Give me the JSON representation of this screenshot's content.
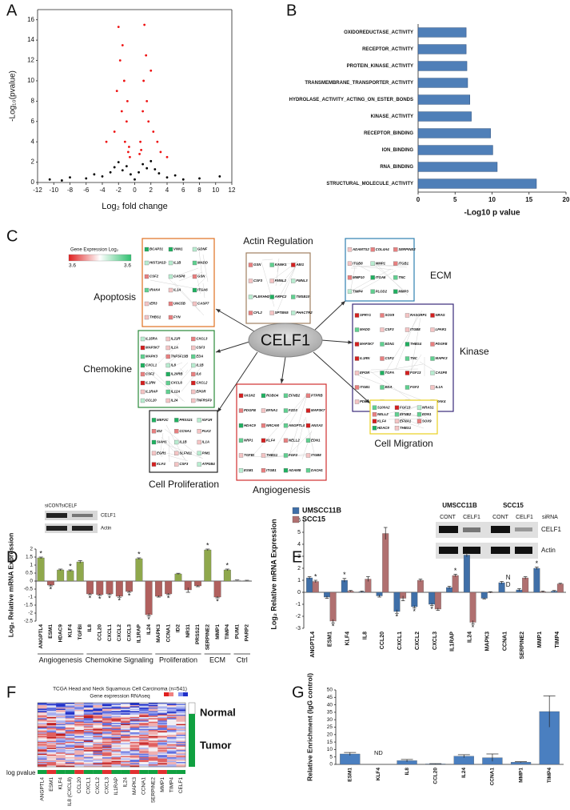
{
  "chart_data": [
    {
      "type": "scatter",
      "panel": "A",
      "x_label": "Log₂ fold change",
      "y_label": "-Log₁₀(pvalue)",
      "xlim": [
        -12,
        12
      ],
      "xticks": [
        -12,
        -10,
        -8,
        -6,
        -4,
        -2,
        0,
        2,
        4,
        6,
        8,
        10,
        12
      ],
      "ylim": [
        0,
        17
      ],
      "yticks": [
        0,
        2,
        4,
        6,
        8,
        10,
        12,
        14,
        16
      ],
      "series": [
        {
          "color": "#000000",
          "x": [
            -10.5,
            -9,
            -8,
            -6,
            -5,
            -4,
            -3,
            -2.5,
            -2,
            -1.5,
            -1,
            -0.5,
            0,
            0.5,
            1,
            1.5,
            2,
            2.5,
            3,
            4,
            5,
            6,
            8,
            10.5
          ],
          "y": [
            0.3,
            0.2,
            0.5,
            0.4,
            0.8,
            0.6,
            1.0,
            1.5,
            2.0,
            1.2,
            1.6,
            0.8,
            0.3,
            1.0,
            1.8,
            1.4,
            2.1,
            1.3,
            0.9,
            0.5,
            0.7,
            0.3,
            0.4,
            0.6
          ]
        },
        {
          "color": "#ee1111",
          "x": [
            -3.5,
            -2.5,
            -2.2,
            -2,
            -1.8,
            -1.6,
            -1.5,
            -1.3,
            -1.2,
            -1,
            -0.9,
            -0.8,
            -0.7,
            -0.6,
            0.6,
            0.7,
            0.8,
            1,
            1.1,
            1.2,
            1.4,
            1.5,
            1.7,
            2,
            2.3,
            2.8,
            3.2,
            4
          ],
          "y": [
            4,
            5,
            9,
            15.3,
            12,
            7,
            13.5,
            10,
            4,
            6,
            8,
            3,
            3.5,
            2.5,
            2.8,
            4,
            3.2,
            7,
            10,
            15.5,
            12.5,
            8,
            6,
            11,
            5,
            4,
            3,
            2.5
          ]
        }
      ]
    },
    {
      "type": "barh",
      "panel": "B",
      "x_label": "-Log10 p value",
      "color": "#4f7fb8",
      "xlim": [
        0,
        20
      ],
      "xticks": [
        0,
        5,
        10,
        15,
        20
      ],
      "categories": [
        "OXIDOREDUCTASE_ACTIVITY",
        "RECEPTOR_ACTIVITY",
        "PROTEIN_KINASE_ACTIVITY",
        "TRANSMEMBRANE_TRANSPORTER_ACTIVITY",
        "HYDROLASE_ACTIVITY_ACTING_ON_ESTER_BONDS",
        "KINASE_ACTIVITY",
        "RECEPTOR_BINDING",
        "ION_BINDING",
        "RNA_BINDING",
        "STRUCTURAL_MOLECULE_ACTIVITY"
      ],
      "values": [
        6.5,
        6.5,
        6.6,
        6.7,
        7.0,
        7.2,
        9.8,
        10.1,
        10.7,
        16.0
      ]
    },
    {
      "type": "bar",
      "panel": "D",
      "y_label": "Log₂ Relative mRNA Expression",
      "ylim": [
        -2.5,
        2
      ],
      "yticks": [
        -2.5,
        -2,
        -1.5,
        -1,
        -0.5,
        0,
        0.5,
        1,
        1.5,
        2
      ],
      "inset": {
        "lanes": "siCONTsiCELF",
        "bands": [
          "CELF1",
          "Actin"
        ]
      },
      "groups": [
        {
          "name": "Angiogenesis",
          "categories": [
            "ANGPTL4",
            "ESM1",
            "HDAC9",
            "KLF4",
            "TGFBI"
          ],
          "values": [
            1.45,
            -0.25,
            0.7,
            0.65,
            1.2
          ],
          "errors": [
            0.05,
            0.05,
            0.05,
            0.05,
            0.08
          ],
          "colors": [
            "#8fa84c",
            "#b0605e",
            "#8fa84c",
            "#8fa84c",
            "#8fa84c"
          ],
          "significance": [
            "*",
            "*",
            null,
            "*",
            null
          ]
        },
        {
          "name": "Chemokine Signaling",
          "categories": [
            "IL8",
            "CCL20",
            "CXCL1",
            "CXCL2",
            "CXCL3",
            "IL1RAP",
            "IL24"
          ],
          "values": [
            -0.8,
            -0.85,
            -0.8,
            -0.95,
            -0.65,
            1.4,
            -2.1
          ],
          "errors": [
            0.05,
            0.05,
            0.05,
            0.06,
            0.05,
            0.05,
            0.08
          ],
          "colors": [
            "#b0605e",
            "#b0605e",
            "#b0605e",
            "#b0605e",
            "#b0605e",
            "#8fa84c",
            "#b0605e"
          ],
          "significance": [
            "*",
            "*",
            "*",
            "*",
            "*",
            "*",
            "*"
          ]
        },
        {
          "name": "Proliferation",
          "categories": [
            "MAPK3",
            "CCNA1",
            "ID2",
            "NR31",
            "PRSS21"
          ],
          "values": [
            -0.95,
            -0.8,
            0.45,
            -0.55,
            -0.3
          ],
          "errors": [
            0.05,
            0.05,
            0.04,
            0.15,
            0.05
          ],
          "colors": [
            "#b0605e",
            "#b0605e",
            "#8fa84c",
            "#b0605e",
            "#b0605e"
          ],
          "significance": [
            null,
            "*",
            null,
            null,
            null
          ]
        },
        {
          "name": "ECM",
          "categories": [
            "SERPINE2",
            "MMP1",
            "TIMP4"
          ],
          "values": [
            1.95,
            -1.0,
            0.7
          ],
          "errors": [
            0.05,
            0.05,
            0.05
          ],
          "colors": [
            "#8fa84c",
            "#b0605e",
            "#8fa84c"
          ],
          "significance": [
            "*",
            "*",
            "*"
          ]
        },
        {
          "name": "Ctrl",
          "categories": [
            "PUM1",
            "PARP2"
          ],
          "values": [
            0.05,
            0.03
          ],
          "errors": [
            0.02,
            0.02
          ],
          "colors": [
            "#c8c8c8",
            "#c8c8c8"
          ],
          "significance": [
            null,
            null
          ]
        }
      ]
    },
    {
      "type": "bar",
      "panel": "E",
      "y_label": "Log₂ Relative mRNA Expression",
      "ylim": [
        -3,
        6
      ],
      "yticks": [
        -3,
        -2,
        -1,
        0,
        1,
        2,
        3,
        4,
        5,
        6
      ],
      "inset": {
        "cell_lines": [
          "UMSCC11B",
          "SCC15"
        ],
        "lane_title": "siRNA",
        "lanes": [
          "CONT",
          "CELF1",
          "CONT",
          "CELF1"
        ],
        "bands": [
          "CELF1",
          "Actin"
        ]
      },
      "categories": [
        "ANGPTL4",
        "ESM1",
        "KLF4",
        "IL8",
        "CCL20",
        "CXCL1",
        "CXCL2",
        "CXCL3",
        "IL1RAP",
        "IL24",
        "MAPK3",
        "CCNA1",
        "SERPINE2",
        "MMP1",
        "TIMP4"
      ],
      "series": [
        {
          "name": "UMSCC11B",
          "color": "#3f6fa8",
          "values": [
            1.2,
            -0.4,
            1.0,
            0.05,
            -0.3,
            -1.6,
            -1.2,
            -1.0,
            0.4,
            3.1,
            -0.5,
            0.8,
            0.2,
            2.0,
            0.1
          ],
          "errors": [
            0.1,
            0.1,
            0.15,
            0.05,
            0.1,
            0.15,
            0.1,
            0.1,
            0.1,
            0.15,
            0.05,
            0.1,
            0.1,
            0.1,
            0.05
          ],
          "significance": [
            null,
            null,
            "*",
            null,
            null,
            "*",
            "*",
            "*",
            null,
            "*",
            null,
            null,
            null,
            "*",
            null
          ]
        },
        {
          "name": "SCC15",
          "color": "#b07070",
          "values": [
            0.9,
            -2.4,
            0.1,
            1.1,
            4.9,
            -0.5,
            1.0,
            -1.4,
            1.4,
            -2.5,
            0.0,
            null,
            1.2,
            0.05,
            0.7
          ],
          "errors": [
            0.1,
            0.15,
            0.05,
            0.2,
            0.5,
            0.2,
            0.1,
            0.1,
            0.1,
            0.15,
            0.05,
            null,
            0.1,
            0.05,
            0.05
          ],
          "significance": [
            "*",
            "*",
            null,
            null,
            null,
            null,
            null,
            null,
            "*",
            "*",
            null,
            null,
            null,
            null,
            null
          ],
          "value_labels": [
            null,
            null,
            null,
            null,
            null,
            null,
            null,
            null,
            null,
            null,
            null,
            "ND",
            null,
            null,
            null
          ]
        }
      ]
    },
    {
      "type": "bar",
      "panel": "G",
      "y_label": "Relative Enrichment (IgG control)",
      "ylim": [
        0,
        50
      ],
      "yticks": [
        0,
        5,
        10,
        15,
        20,
        25,
        30,
        35,
        40,
        45,
        50
      ],
      "color": "#4a7fc0",
      "categories": [
        "ESM1",
        "KLF4",
        "IL8",
        "CCL20",
        "IL24",
        "CCNA1",
        "MMP1",
        "TIMP4"
      ],
      "values": [
        7,
        null,
        2.5,
        0.3,
        5.5,
        4.5,
        1.5,
        35.5
      ],
      "errors": [
        1,
        null,
        0.8,
        0.2,
        1,
        2.5,
        0.3,
        10.5
      ],
      "value_labels": [
        null,
        "ND",
        null,
        null,
        null,
        null,
        null,
        null
      ]
    }
  ],
  "network": {
    "panel": "C",
    "center": "CELF1",
    "legend": {
      "title": "Gene Expression Log₂",
      "min_label": "3.6",
      "max_label": "3.6"
    },
    "modules": [
      {
        "name": "Apoptosis",
        "genes": [
          "BCAP31",
          "VNN1",
          "GDNF",
          "HIST1H1D",
          "IL1B",
          "MADD",
          "CSF2",
          "CASP8",
          "GSN",
          "IRAK4",
          "IL1A",
          "ITGA6",
          "IER3",
          "UNC5B",
          "CASP7",
          "THBS1",
          "FYN"
        ]
      },
      {
        "name": "Actin Regulation",
        "genes": [
          "GSN",
          "KANK1",
          "ABI1",
          "CSF3",
          "FMNL2",
          "FMNL3",
          "PLEKHH2",
          "ARPC2",
          "TMSB10",
          "CFL2",
          "SPTBN5",
          "PHACTR2"
        ]
      },
      {
        "name": "ECM",
        "genes": [
          "ADAMTS2",
          "COL4A4",
          "SERPINE2",
          "ITGB8",
          "MMP1",
          "ITGB1",
          "MMP10",
          "ITGA6",
          "TNC",
          "TIMP4",
          "PLOD2",
          "MMP3"
        ]
      },
      {
        "name": "Chemokine",
        "genes": [
          "IL15RA",
          "IL21R",
          "CXCL3",
          "MAP3K7",
          "IL1A",
          "CSF3",
          "MAPK3",
          "TNFSF13B",
          "EDA",
          "CXCL1",
          "IL8",
          "IL1B",
          "CSF2",
          "IL20RB",
          "IL6",
          "IL1RN",
          "CXCL6",
          "CXCL2",
          "IL1RAP",
          "IL12A",
          "EPOR",
          "CCL20",
          "IL24",
          "TNFRSF9"
        ]
      },
      {
        "name": "Kinase",
        "genes": [
          "SPRY1",
          "SOX9",
          "RASGRP1",
          "NRAS",
          "MADD",
          "CSF3",
          "ITGB8",
          "LPAR1",
          "MAP3K7",
          "EDN1",
          "THBS4",
          "PDGFB",
          "IL1RN",
          "CSF2",
          "TNC",
          "MAPK3",
          "EPOR",
          "TGFA",
          "FGF13",
          "CASP8",
          "ITGB1",
          "EDA",
          "FGF2",
          "IL1A",
          "PDE",
          "BTC",
          "PTPRR",
          "IRAK4"
        ]
      },
      {
        "name": "Cell Proliferation",
        "genes": [
          "MEF2C",
          "PRSS21",
          "IGF1R",
          "ID2",
          "CCNA1",
          "PLK2",
          "SIAH1",
          "IL1B",
          "IL1A",
          "EGR1",
          "SLFN11",
          "PIM1",
          "KLF4",
          "CSF3",
          "ATP2B4"
        ]
      },
      {
        "name": "Angiogenesis",
        "genes": [
          "VASH2",
          "ROBO4",
          "EFNB2",
          "PTPRB",
          "PDGFB",
          "EFNA1",
          "FZD3",
          "MAP3K7",
          "HDAC9",
          "NRCAM",
          "ANGPTL4",
          "ANXA3",
          "NRP1",
          "KLF4",
          "NELL2",
          "EDN1",
          "TGFBI",
          "THBS1",
          "FGF2",
          "ITGB8",
          "ESM1",
          "ITGB1",
          "ADAM8",
          "DACH1"
        ]
      },
      {
        "name": "Cell Migration",
        "genes": [
          "S100A2",
          "FGF13",
          "NRAS1",
          "NELL2",
          "EFNB2",
          "EDN1",
          "KLF4",
          "EFNA1",
          "SOX9",
          "HDAC9",
          "THBS1"
        ]
      }
    ]
  },
  "heatmap": {
    "panel": "F",
    "title": "TCGA Head and Neck Squamous Cell Carcinoma (n=541)",
    "subtitle": "Gene expression RNAseq",
    "groups": [
      "Normal",
      "Tumor"
    ],
    "row_label": "log pvalue",
    "genes": [
      "ANGPTL4",
      "ESM1",
      "KLF4",
      "IL8 (CXCL8)",
      "CCL20",
      "CXCL1",
      "CXCL2",
      "CXCL3",
      "IL1RAP",
      "IL24",
      "MAPK3",
      "CCNA1",
      "SERPINE2",
      "MMP1",
      "TIMP4",
      "CELF1"
    ]
  }
}
